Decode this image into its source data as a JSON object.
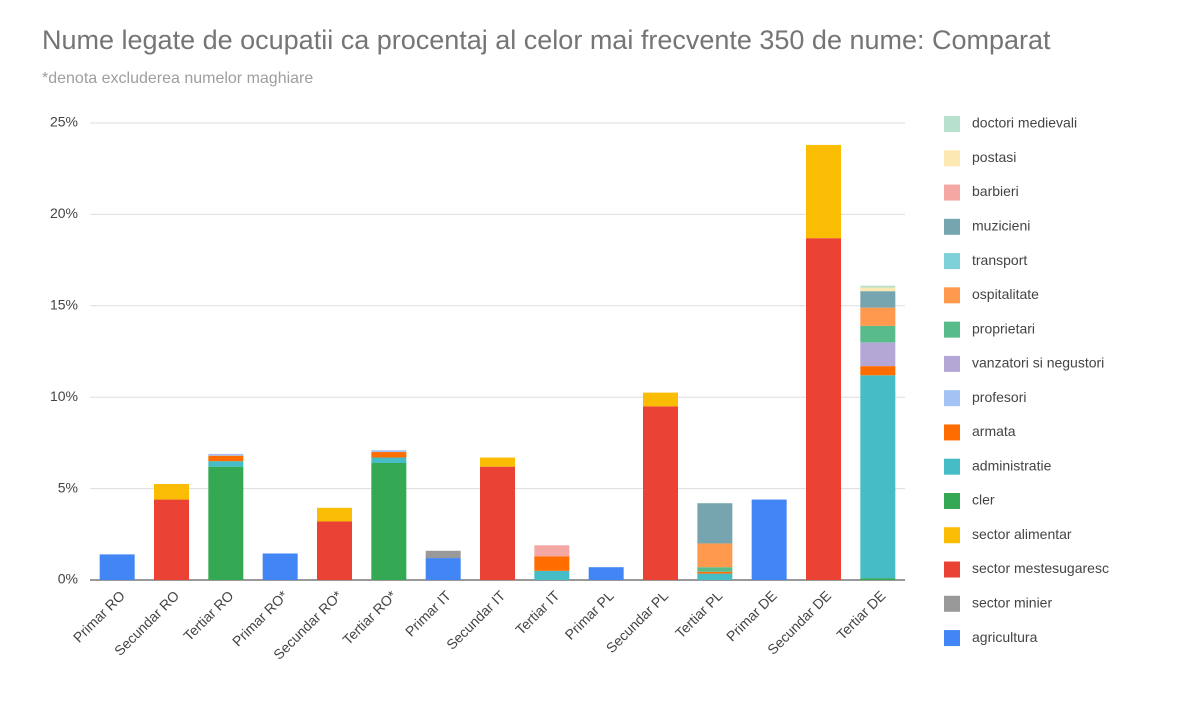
{
  "chart_data": {
    "type": "stacked_bar",
    "title": "Nume legate de ocupatii ca procentaj al celor mai frecvente 350 de nume: Comparat",
    "subtitle": "*denota excluderea numelor maghiare",
    "categories": [
      "Primar RO",
      "Secundar RO",
      "Tertiar RO",
      "Primar RO*",
      "Secundar RO*",
      "Tertiar RO*",
      "Primar IT",
      "Secundar IT",
      "Tertiar IT",
      "Primar PL",
      "Secundar PL",
      "Tertiar PL",
      "Primar DE",
      "Secundar DE",
      "Tertiar DE"
    ],
    "series": [
      {
        "name": "agricultura",
        "color": "#4285f4",
        "values": [
          1.4,
          0,
          0,
          1.45,
          0,
          0,
          1.2,
          0,
          0,
          0.7,
          0,
          0,
          4.4,
          0,
          0
        ]
      },
      {
        "name": "sector minier",
        "color": "#999999",
        "values": [
          0,
          0,
          0,
          0,
          0,
          0,
          0.4,
          0,
          0,
          0,
          0,
          0,
          0,
          0,
          0
        ]
      },
      {
        "name": "sector mestesugaresc",
        "color": "#ea4335",
        "values": [
          0,
          4.4,
          0,
          0,
          3.2,
          0,
          0,
          6.2,
          0,
          0,
          9.5,
          0,
          0,
          18.7,
          0
        ]
      },
      {
        "name": "sector alimentar",
        "color": "#fbbc04",
        "values": [
          0,
          0.85,
          0,
          0,
          0.75,
          0,
          0,
          0.5,
          0,
          0,
          0.75,
          0,
          0,
          5.1,
          0
        ]
      },
      {
        "name": "cler",
        "color": "#34a853",
        "values": [
          0,
          0,
          6.2,
          0,
          0,
          6.4,
          0,
          0,
          0,
          0,
          0,
          0,
          0,
          0,
          0.1
        ]
      },
      {
        "name": "administratie",
        "color": "#46bdc6",
        "values": [
          0,
          0,
          0.3,
          0,
          0,
          0.3,
          0,
          0,
          0.5,
          0,
          0,
          0.35,
          0,
          0,
          11.1
        ]
      },
      {
        "name": "armata",
        "color": "#ff6d01",
        "values": [
          0,
          0,
          0.3,
          0,
          0,
          0.3,
          0,
          0,
          0.8,
          0,
          0,
          0.1,
          0,
          0,
          0.5
        ]
      },
      {
        "name": "profesori",
        "color": "#a4c2f4",
        "values": [
          0,
          0,
          0.1,
          0,
          0,
          0.1,
          0,
          0,
          0,
          0,
          0,
          0,
          0,
          0,
          0
        ]
      },
      {
        "name": "vanzatori si negustori",
        "color": "#b4a7d6",
        "values": [
          0,
          0,
          0,
          0,
          0,
          0,
          0,
          0,
          0,
          0,
          0,
          0,
          0,
          0,
          1.3
        ]
      },
      {
        "name": "proprietari",
        "color": "#57bb8a",
        "values": [
          0,
          0,
          0,
          0,
          0,
          0,
          0,
          0,
          0,
          0,
          0,
          0.25,
          0,
          0,
          0.9
        ]
      },
      {
        "name": "ospitalitate",
        "color": "#ff994d",
        "values": [
          0,
          0,
          0,
          0,
          0,
          0,
          0,
          0,
          0,
          0,
          0,
          1.3,
          0,
          0,
          1.0
        ]
      },
      {
        "name": "transport",
        "color": "#7ed1d7",
        "values": [
          0,
          0,
          0,
          0,
          0,
          0,
          0,
          0,
          0,
          0,
          0,
          0,
          0,
          0,
          0
        ]
      },
      {
        "name": "muzicieni",
        "color": "#76a5af",
        "values": [
          0,
          0,
          0,
          0,
          0,
          0,
          0,
          0,
          0,
          0,
          0,
          2.2,
          0,
          0,
          0.9
        ]
      },
      {
        "name": "barbieri",
        "color": "#f4a7a3",
        "values": [
          0,
          0,
          0,
          0,
          0,
          0,
          0,
          0,
          0.6,
          0,
          0,
          0,
          0,
          0,
          0
        ]
      },
      {
        "name": "postasi",
        "color": "#fce8b2",
        "values": [
          0,
          0,
          0,
          0,
          0,
          0,
          0,
          0,
          0,
          0,
          0,
          0,
          0,
          0,
          0.2
        ]
      },
      {
        "name": "doctori medievali",
        "color": "#b7e1cd",
        "values": [
          0,
          0,
          0,
          0,
          0,
          0,
          0,
          0,
          0,
          0,
          0,
          0,
          0,
          0,
          0.1
        ]
      }
    ],
    "ylim": [
      0,
      25
    ],
    "yticks": [
      {
        "value": 0,
        "label": "0%"
      },
      {
        "value": 5,
        "label": "5%"
      },
      {
        "value": 10,
        "label": "10%"
      },
      {
        "value": 15,
        "label": "15%"
      },
      {
        "value": 20,
        "label": "20%"
      },
      {
        "value": 25,
        "label": "25%"
      }
    ],
    "grid": true,
    "legend": "right"
  }
}
